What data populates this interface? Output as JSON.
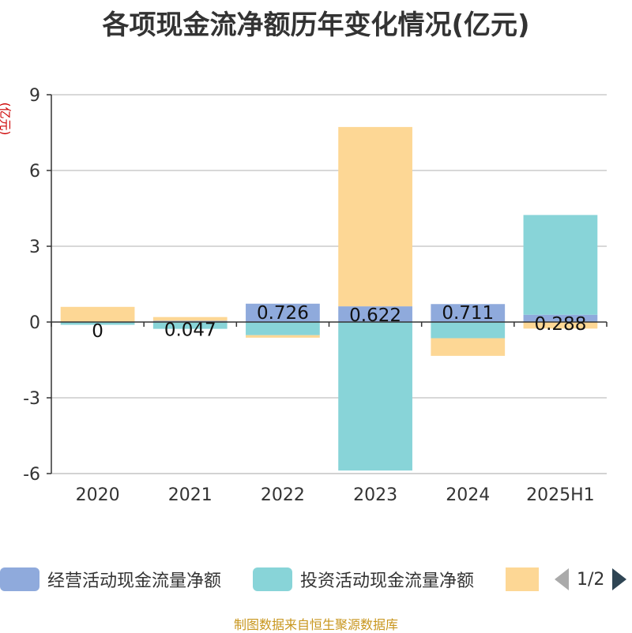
{
  "title": "各项现金流净额历年变化情况(亿元)",
  "y_unit": "(亿元)",
  "source": "制图数据来自恒生聚源数据库",
  "legend": {
    "items": [
      {
        "label": "经营活动现金流量净额",
        "color": "#8faadc"
      },
      {
        "label": "投资活动现金流量净额",
        "color": "#88d4d8"
      },
      {
        "label": "",
        "color": "#fdd795"
      }
    ],
    "page_text": "1/2"
  },
  "chart_data": {
    "type": "bar",
    "stacked": true,
    "categories": [
      "2020",
      "2021",
      "2022",
      "2023",
      "2024",
      "2025H1"
    ],
    "ylim": [
      -6,
      9
    ],
    "yticks": [
      9,
      6,
      3,
      0,
      -3,
      -6
    ],
    "grid": true,
    "legend_position": "bottom",
    "series": [
      {
        "name": "经营活动现金流量净额",
        "color": "#8faadc",
        "values": [
          -0.01,
          0.047,
          0.726,
          0.622,
          0.711,
          0.288
        ],
        "labels": [
          "0",
          "0.047",
          "0.726",
          "0.622",
          "0.711",
          "0.288"
        ]
      },
      {
        "name": "投资活动现金流量净额",
        "color": "#88d4d8",
        "values": [
          -0.1,
          -0.27,
          -0.52,
          -5.88,
          -0.64,
          3.95
        ]
      },
      {
        "color": "#fdd795",
        "values": [
          0.6,
          0.15,
          -0.1,
          7.1,
          -0.7,
          -0.26
        ]
      }
    ]
  }
}
